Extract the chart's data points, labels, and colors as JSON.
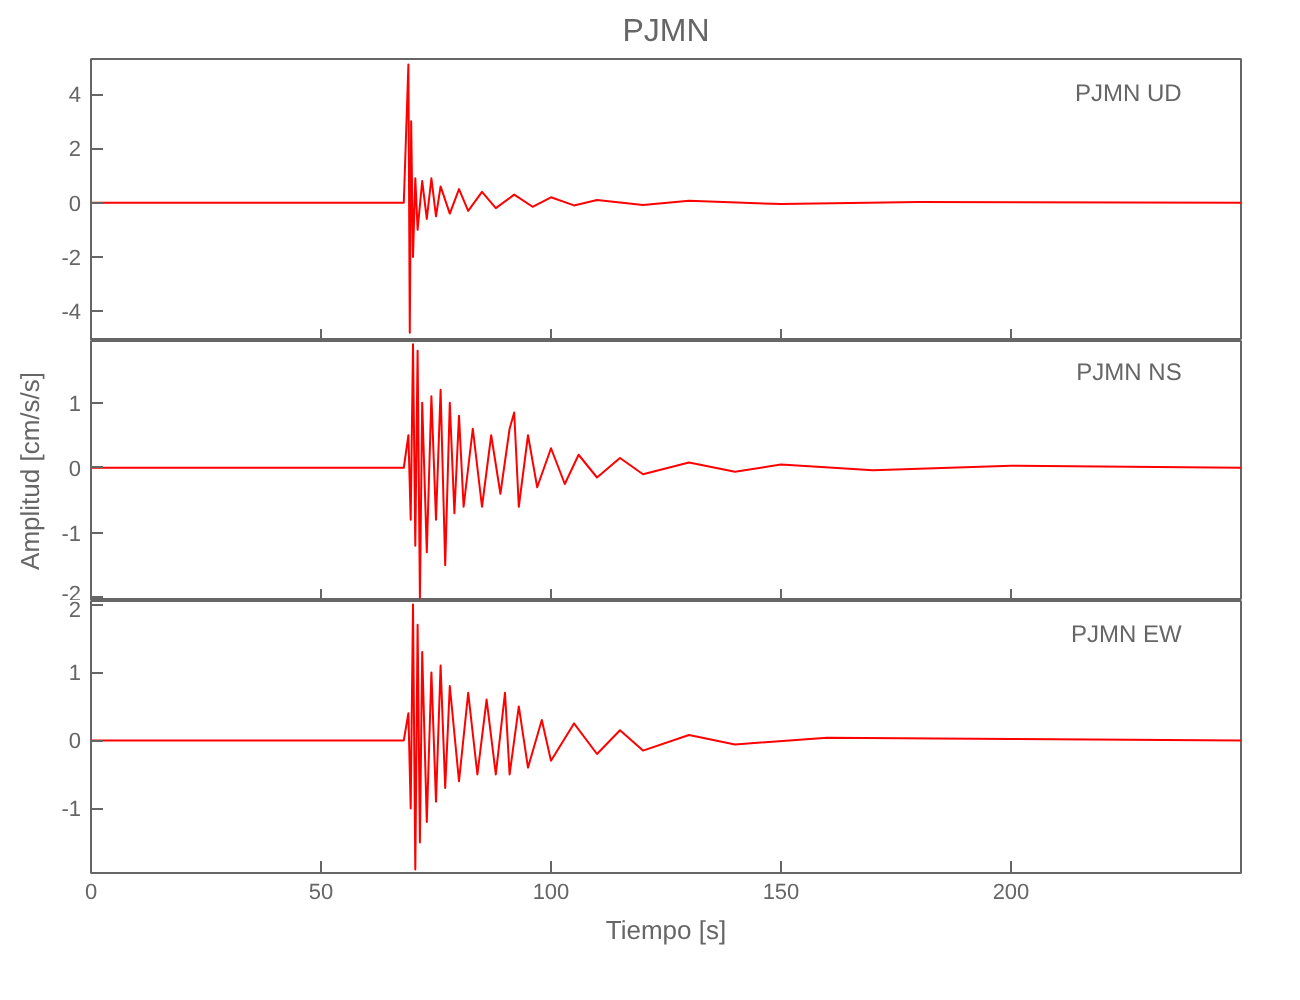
{
  "chart_data": [
    {
      "type": "line",
      "title": "PJMN",
      "annotations": [
        "PJMN   UD"
      ],
      "x": [
        0,
        68,
        69,
        69.3,
        69.6,
        70,
        70.5,
        71,
        72,
        73,
        74,
        75,
        76,
        78,
        80,
        82,
        85,
        88,
        92,
        96,
        100,
        105,
        110,
        120,
        130,
        150,
        180,
        250
      ],
      "series": [
        {
          "color": "#ff0000",
          "values": [
            0,
            0,
            5.1,
            -4.8,
            3,
            -2,
            0.9,
            -1,
            0.8,
            -0.6,
            0.9,
            -0.5,
            0.6,
            -0.4,
            0.5,
            -0.3,
            0.4,
            -0.2,
            0.3,
            -0.15,
            0.2,
            -0.1,
            0.1,
            -0.08,
            0.07,
            -0.05,
            0.03,
            0
          ]
        }
      ],
      "xlim": [
        0,
        250
      ],
      "xticks": [
        0,
        50,
        100,
        150,
        200
      ],
      "ylim": [
        -5.1,
        5.3
      ],
      "yticks": [
        -4,
        -2,
        0,
        2,
        4
      ],
      "tick_labels": "y"
    },
    {
      "type": "line",
      "ylabel": "Amplitud [cm/s/s]",
      "annotations": [
        "PJMN   NS"
      ],
      "x": [
        0,
        68,
        69,
        69.5,
        70,
        70.5,
        71,
        71.5,
        72,
        73,
        74,
        75,
        76,
        77,
        78,
        79,
        80,
        81,
        83,
        85,
        87,
        89,
        91,
        92,
        93,
        95,
        97,
        100,
        103,
        106,
        110,
        115,
        120,
        130,
        140,
        150,
        170,
        200,
        250
      ],
      "series": [
        {
          "color": "#ff0000",
          "values": [
            0,
            0,
            0.5,
            -0.8,
            1.9,
            -1.2,
            1.8,
            -2.0,
            1.0,
            -1.3,
            1.1,
            -0.8,
            1.2,
            -1.5,
            1.0,
            -0.7,
            0.8,
            -0.6,
            0.6,
            -0.6,
            0.5,
            -0.4,
            0.6,
            0.85,
            -0.6,
            0.5,
            -0.3,
            0.3,
            -0.25,
            0.2,
            -0.15,
            0.15,
            -0.1,
            0.08,
            -0.06,
            0.05,
            -0.04,
            0.03,
            0
          ]
        }
      ],
      "xlim": [
        0,
        250
      ],
      "xticks": [
        0,
        50,
        100,
        150,
        200
      ],
      "ylim": [
        -2.05,
        1.95
      ],
      "yticks": [
        -2,
        -1,
        0,
        1
      ],
      "tick_labels": "y"
    },
    {
      "type": "line",
      "xlabel": "Tiempo [s]",
      "annotations": [
        "PJMN   EW"
      ],
      "x": [
        0,
        68,
        69,
        69.5,
        70,
        70.5,
        71,
        71.5,
        72,
        73,
        74,
        75,
        76,
        77,
        78,
        80,
        82,
        84,
        86,
        88,
        90,
        91,
        93,
        95,
        98,
        100,
        105,
        110,
        115,
        120,
        130,
        140,
        160,
        200,
        250
      ],
      "series": [
        {
          "color": "#ff0000",
          "values": [
            0,
            0,
            0.4,
            -1.0,
            2.0,
            -1.9,
            1.7,
            -1.5,
            1.3,
            -1.2,
            1.0,
            -0.9,
            1.1,
            -0.7,
            0.8,
            -0.6,
            0.7,
            -0.5,
            0.6,
            -0.5,
            0.7,
            -0.5,
            0.5,
            -0.4,
            0.3,
            -0.3,
            0.25,
            -0.2,
            0.15,
            -0.15,
            0.08,
            -0.06,
            0.04,
            0.02,
            0
          ]
        }
      ],
      "xlim": [
        0,
        250
      ],
      "xticks": [
        0,
        50,
        100,
        150,
        200
      ],
      "ylim": [
        -1.95,
        2.05
      ],
      "yticks": [
        -1,
        0,
        1,
        2
      ]
    }
  ]
}
